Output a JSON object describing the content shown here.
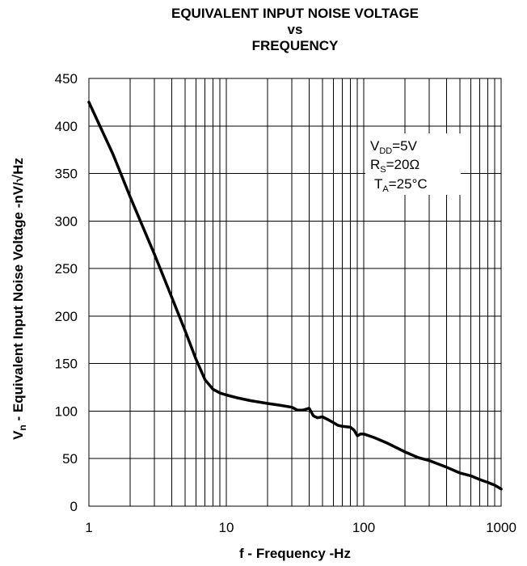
{
  "chart_data": {
    "type": "line",
    "title": [
      "EQUIVALENT INPUT NOISE VOLTAGE",
      "vs",
      "FREQUENCY"
    ],
    "xlabel": "f - Frequency -Hz",
    "ylabel": {
      "main": "V",
      "sub": "n",
      "rest": " - Equivalent Input Noise Voltage -nV/√Hz"
    },
    "xscale": "log",
    "xlim": [
      1,
      1000
    ],
    "ylim": [
      0,
      450
    ],
    "xticks": [
      1,
      10,
      100,
      1000
    ],
    "xtick_labels": [
      "1",
      "10",
      "100",
      "1000"
    ],
    "yticks": [
      0,
      50,
      100,
      150,
      200,
      250,
      300,
      350,
      400,
      450
    ],
    "ytick_labels": [
      "0",
      "50",
      "100",
      "150",
      "200",
      "250",
      "300",
      "350",
      "400",
      "450"
    ],
    "grid": true,
    "annotation": [
      {
        "main": "V",
        "sub": "DD",
        "rest": "=5V"
      },
      {
        "main": "R",
        "sub": "S",
        "rest": "=20Ω"
      },
      {
        "main": "T",
        "sub": "A",
        "rest": "=25°C"
      }
    ],
    "series": [
      {
        "x": [
          1,
          1.5,
          2,
          3,
          4,
          5,
          6,
          7,
          8,
          9,
          10,
          12,
          15,
          20,
          25,
          30,
          33,
          36,
          40,
          43,
          46,
          50,
          55,
          60,
          65,
          70,
          80,
          85,
          90,
          95,
          100,
          120,
          150,
          200,
          250,
          300,
          400,
          500,
          600,
          700,
          800,
          900,
          1000
        ],
        "y": [
          425,
          370,
          325,
          265,
          220,
          185,
          155,
          133,
          123,
          119,
          117,
          114,
          111,
          108,
          106,
          104,
          101,
          101,
          103,
          95,
          93,
          94,
          91,
          88,
          85,
          84,
          83,
          80,
          74,
          76,
          76,
          72,
          66,
          57,
          51,
          48,
          41,
          35,
          32,
          28,
          25,
          22,
          18
        ]
      }
    ]
  }
}
